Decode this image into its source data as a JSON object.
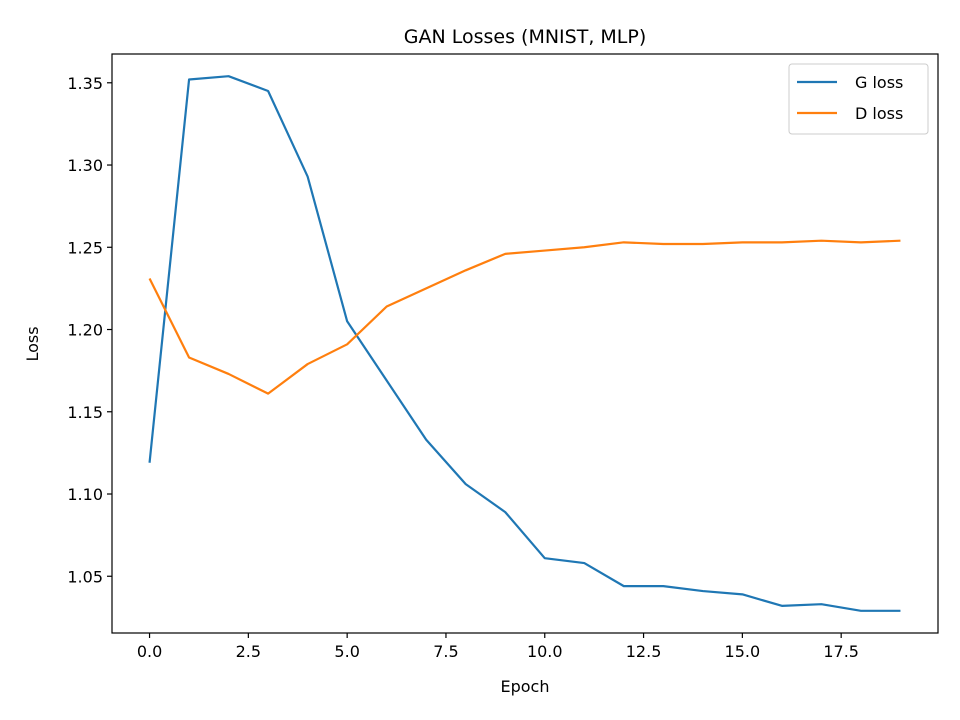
{
  "chart_data": {
    "type": "line",
    "title": "GAN Losses (MNIST, MLP)",
    "xlabel": "Epoch",
    "ylabel": "Loss",
    "xlim": [
      -0.95,
      19.95
    ],
    "ylim": [
      1.0155,
      1.3675
    ],
    "xticks": [
      0.0,
      2.5,
      5.0,
      7.5,
      10.0,
      12.5,
      15.0,
      17.5
    ],
    "xtick_labels": [
      "0.0",
      "2.5",
      "5.0",
      "7.5",
      "10.0",
      "12.5",
      "15.0",
      "17.5"
    ],
    "yticks": [
      1.05,
      1.1,
      1.15,
      1.2,
      1.25,
      1.3,
      1.35
    ],
    "ytick_labels": [
      "1.05",
      "1.10",
      "1.15",
      "1.20",
      "1.25",
      "1.30",
      "1.35"
    ],
    "grid": false,
    "legend_position": "top-right",
    "x": [
      0,
      1,
      2,
      3,
      4,
      5,
      6,
      7,
      8,
      9,
      10,
      11,
      12,
      13,
      14,
      15,
      16,
      17,
      18,
      19
    ],
    "series": [
      {
        "name": "G loss",
        "color": "#1f77b4",
        "values": [
          1.119,
          1.352,
          1.354,
          1.345,
          1.293,
          1.205,
          1.169,
          1.133,
          1.106,
          1.089,
          1.061,
          1.058,
          1.044,
          1.044,
          1.041,
          1.039,
          1.032,
          1.033,
          1.029,
          1.029
        ]
      },
      {
        "name": "D loss",
        "color": "#ff7f0e",
        "values": [
          1.231,
          1.183,
          1.173,
          1.161,
          1.179,
          1.191,
          1.214,
          1.225,
          1.236,
          1.246,
          1.248,
          1.25,
          1.253,
          1.252,
          1.252,
          1.253,
          1.253,
          1.254,
          1.253,
          1.254
        ]
      }
    ]
  }
}
